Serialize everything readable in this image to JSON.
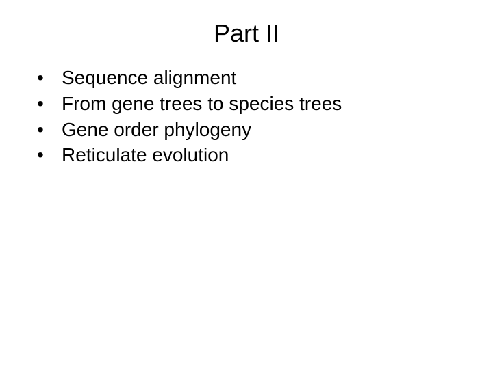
{
  "slide": {
    "title": "Part II",
    "bullets": [
      "Sequence alignment",
      "From gene trees to species trees",
      "Gene order phylogeny",
      "Reticulate evolution"
    ],
    "bullet_glyph": "•"
  },
  "style": {
    "background_color": "#ffffff",
    "text_color": "#000000",
    "title_fontsize": 36,
    "body_fontsize": 28,
    "font_family": "Arial"
  }
}
